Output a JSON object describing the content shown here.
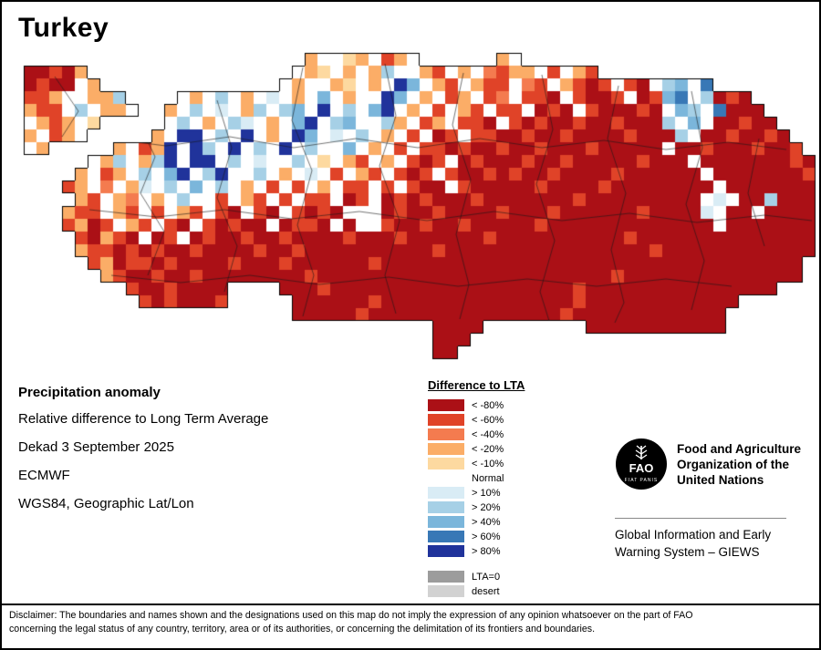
{
  "title": "Turkey",
  "map": {
    "palette": {
      "1": "#ab1016",
      "2": "#e04328",
      "3": "#f47b4f",
      "4": "#fbad67",
      "5": "#fdd9a0",
      "6": "#ffffff",
      "7": "#d9ecf5",
      "8": "#a6d0e6",
      "9": "#7bb6db",
      "A": "#3878b6",
      "B": "#20339b"
    },
    "grid_rows": [
      [
        "......................",
        "466546246",
        "......",
        "46",
        "......................."
      ],
      [
        "11214",
        "................",
        "645646486642",
        "646324462642",
        "................."
      ],
      [
        "121164",
        "..............",
        "646645646B",
        "9642642263",
        "2642126216",
        "896A",
        "........"
      ],
      [
        "22466448",
        "....",
        "64686467",
        "64696466B9",
        "6462462362",
        "2162112612",
        "9A68121",
        "....."
      ],
      [
        "422686446",
        "..",
        "468676486",
        "896B6869B6",
        "4626426226",
        "1216211121",
        "6986A111",
        "...."
      ],
      [
        "642465",
        ".....",
        "686468764",
        "69B6896684",
        "6246221621",
        "2112112111",
        "869611211",
        "..."
      ],
      [
        "46246",
        ".....",
        "46BB686B64",
        "6B96768646",
        "2612622112",
        "1121111211",
        "1861121121",
        ".."
      ],
      [
        "64",
        ".....",
        "4624B6B86B686",
        "B686696462",
        "6221211211",
        "2111211111",
        "61121112112",
        "."
      ],
      [
        ".....",
        "64864",
        "8B6BB68676",
        "6865642646",
        "2126121112",
        "1121111121",
        "1161111111",
        "21"
      ],
      [
        "....",
        "462468",
        "69B68B6686",
        "4676264262",
        "1262112121",
        "1211112111",
        "1116111111",
        "12"
      ],
      [
        "...",
        "2463647",
        "6869686462",
        "6264622626",
        "2116211111",
        "2111121111",
        "1111611111",
        "11"
      ],
      [
        "....",
        "426436",
        "4686626426",
        "2622612612",
        "1211121111",
        "1112111111",
        "1116761181",
        "11"
      ],
      [
        "...",
        "4226426",
        "2642621621",
        "6212166612",
        "1121111211",
        "1211111121",
        "1117611611",
        "11"
      ],
      [
        "...",
        "2412642",
        "6216212116",
        "1221616621",
        "1211211111",
        "2111111111",
        "1111611111",
        "11"
      ],
      [
        "....",
        "214216",
        "1261211211",
        "2111121112",
        "1111112111",
        "1111111211",
        "1111111111",
        "11"
      ],
      [
        "....",
        "422121",
        "2112111121",
        "1211111111",
        "1121111111",
        "1111111112",
        "1111111111",
        "11"
      ],
      [
        ".....",
        "24122",
        "1211112111",
        "2111111211",
        "1111111111",
        "1111111111",
        "1111111111",
        "1",
        "."
      ],
      [
        "......",
        "4211",
        "2112111111",
        "1121111111",
        "1111111111",
        "1111112111",
        "1111111111",
        "1",
        "."
      ],
      [
        "........",
        "21",
        "121111",
        "....",
        "1112111111",
        "1111111111",
        "1112111111",
        "111111111",
        "..."
      ],
      [
        ".........",
        "21211",
        "12",
        ".....",
        "1111112111",
        "1111111111",
        "1121111111",
        "11111",
        "......"
      ],
      [
        ".....................",
        "1111121111",
        "1111111111",
        "1211111111",
        "1111",
        "......."
      ],
      [
        "................................",
        "1111",
        "........",
        "11111111111",
        "......."
      ],
      [
        "................................",
        "111",
        "..........................."
      ],
      [
        "................................",
        "11",
        "............................"
      ]
    ]
  },
  "info": {
    "heading": "Precipitation anomaly",
    "lines": [
      "Relative difference to Long Term Average",
      "Dekad 3 September 2025",
      "ECMWF",
      "WGS84, Geographic Lat/Lon"
    ]
  },
  "legend": {
    "title": "Difference to LTA",
    "items": [
      {
        "label": "< -80%",
        "color": "#ab1016"
      },
      {
        "label": "< -60%",
        "color": "#e04328"
      },
      {
        "label": "< -40%",
        "color": "#f47b4f"
      },
      {
        "label": "< -20%",
        "color": "#fbad67"
      },
      {
        "label": "< -10%",
        "color": "#fdd9a0"
      },
      {
        "label": "Normal",
        "color": "#ffffff"
      },
      {
        "label": "> 10%",
        "color": "#d9ecf5"
      },
      {
        "label": "> 20%",
        "color": "#a6d0e6"
      },
      {
        "label": "> 40%",
        "color": "#7bb6db"
      },
      {
        "label": "> 60%",
        "color": "#3878b6"
      },
      {
        "label": "> 80%",
        "color": "#20339b"
      }
    ],
    "extra_items": [
      {
        "label": "LTA=0",
        "color": "#9c9c9c"
      },
      {
        "label": "desert",
        "color": "#d2d2d2"
      }
    ]
  },
  "fao": {
    "logo_text": "FAO",
    "logo_motto": "FIAT PANIS",
    "org_name": "Food and Agriculture\nOrganization of the\nUnited Nations",
    "giews": "Global Information and Early\nWarning System – GIEWS"
  },
  "disclaimer": "Disclaimer: The boundaries and names shown and the designations used on this map do not imply the expression of any opinion whatsoever on the part of FAO\nconcerning the legal status of any country, territory, area or of its authorities, or concerning the delimitation of its frontiers and boundaries."
}
